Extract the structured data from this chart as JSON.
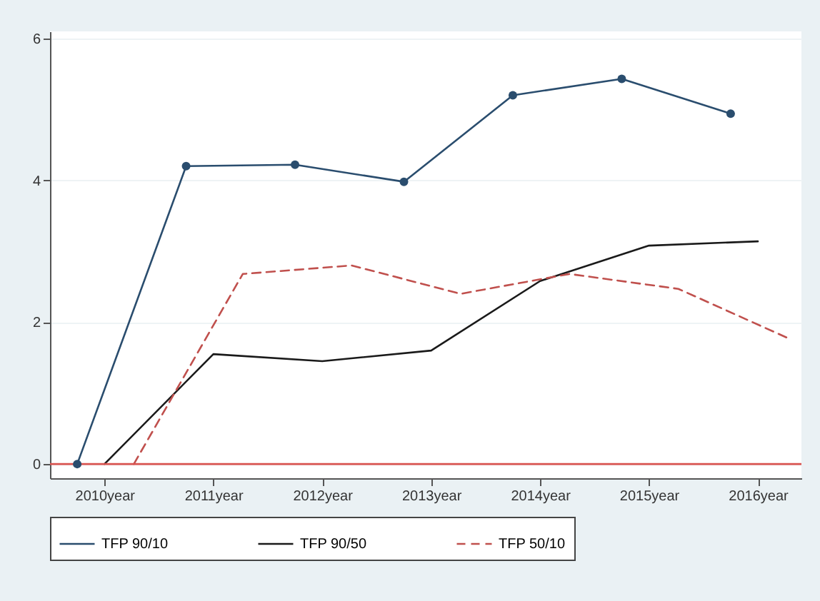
{
  "chart_data": {
    "type": "line",
    "xlim": [
      2009.5,
      2016.4
    ],
    "xticks": [
      {
        "value": 2010,
        "label": "2010year"
      },
      {
        "value": 2011,
        "label": "2011year"
      },
      {
        "value": 2012,
        "label": "2012year"
      },
      {
        "value": 2013,
        "label": "2013year"
      },
      {
        "value": 2014,
        "label": "2014year"
      },
      {
        "value": 2015,
        "label": "2015year"
      },
      {
        "value": 2016,
        "label": "2016year"
      }
    ],
    "ylim": [
      -0.2,
      6.1
    ],
    "yticks": [
      0,
      2,
      4,
      6
    ],
    "grid": "y",
    "legend": "bottom",
    "ref_lines": [
      {
        "axis": "y",
        "value": 0,
        "color": "#d9534f"
      }
    ],
    "series": [
      {
        "name": "TFP 90/10",
        "color": "#2a4d6e",
        "marker": "circle",
        "line_style": "solid",
        "x": [
          2009.75,
          2010.75,
          2011.75,
          2012.75,
          2013.75,
          2014.75,
          2015.75
        ],
        "values": [
          0,
          4.2,
          4.22,
          3.98,
          5.2,
          5.43,
          4.94
        ]
      },
      {
        "name": "TFP 90/50",
        "color": "#1a1a1a",
        "marker": "none",
        "line_style": "solid",
        "x": [
          2010,
          2011,
          2012,
          2013,
          2014,
          2015,
          2016
        ],
        "values": [
          0,
          1.55,
          1.45,
          1.6,
          2.58,
          3.08,
          3.14
        ]
      },
      {
        "name": "TFP 50/10",
        "color": "#c0504d",
        "marker": "none",
        "line_style": "dashed",
        "x": [
          2010.27,
          2011.27,
          2012.27,
          2013.27,
          2014.27,
          2015.27,
          2016.27
        ],
        "values": [
          0,
          2.68,
          2.8,
          2.4,
          2.68,
          2.47,
          1.78
        ]
      }
    ]
  }
}
